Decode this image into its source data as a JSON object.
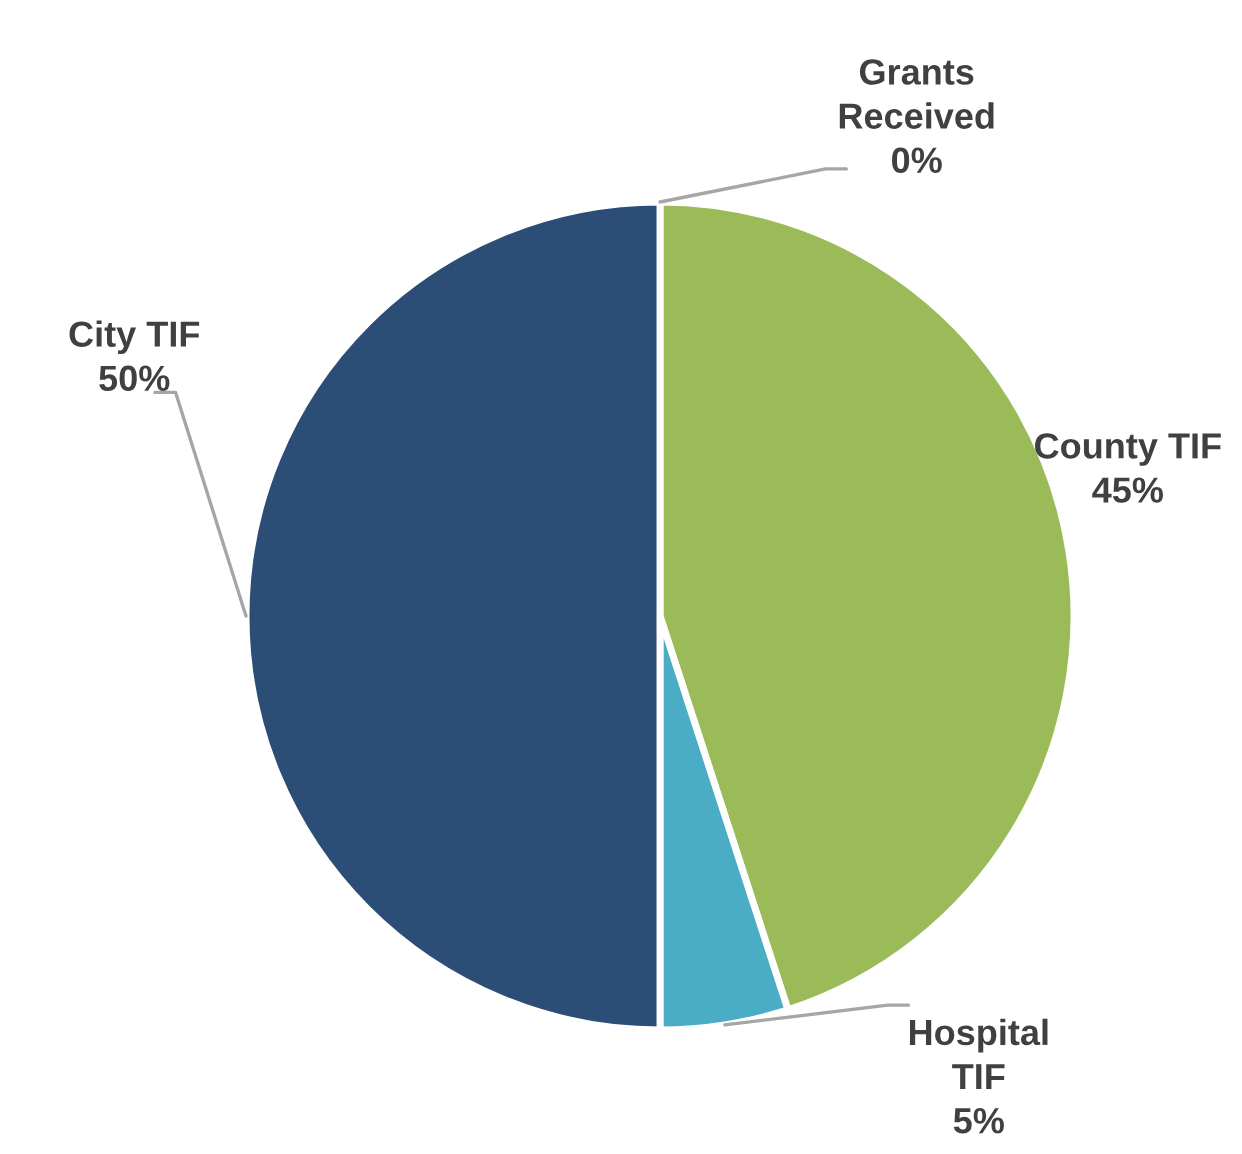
{
  "chart_data": {
    "type": "pie",
    "categories": [
      "Grants Received",
      "County TIF",
      "Hospital TIF",
      "City TIF"
    ],
    "values": [
      0,
      45,
      5,
      50
    ],
    "colors": [
      "#f79646",
      "#9bbb59",
      "#4bacc6",
      "#2c4d75"
    ],
    "value_labels": [
      "0%",
      "45%",
      "5%",
      "50%"
    ],
    "legend": false
  }
}
